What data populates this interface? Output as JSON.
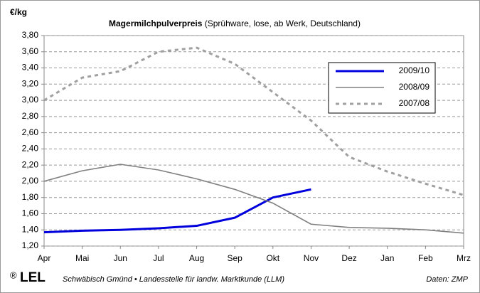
{
  "chart_data": {
    "type": "line",
    "title": "Magermilchpulverpreis",
    "subtitle": "(Sprühware, lose, ab Werk, Deutschland)",
    "y_label": "€/kg",
    "categories": [
      "Apr",
      "Mai",
      "Jun",
      "Jul",
      "Aug",
      "Sep",
      "Okt",
      "Nov",
      "Dez",
      "Jan",
      "Feb",
      "Mrz"
    ],
    "series": [
      {
        "name": "2009/10",
        "color": "#0000dd",
        "width": 3,
        "dashed": false,
        "values": [
          1.37,
          1.39,
          1.4,
          1.42,
          1.45,
          1.55,
          1.8,
          1.9,
          null,
          null,
          null,
          null
        ]
      },
      {
        "name": "2008/09",
        "color": "#808080",
        "width": 1.6,
        "dashed": false,
        "values": [
          2.0,
          2.13,
          2.21,
          2.14,
          2.03,
          1.9,
          1.73,
          1.47,
          1.43,
          1.42,
          1.4,
          1.36
        ]
      },
      {
        "name": "2007/08",
        "color": "#a0a0a0",
        "width": 3,
        "dashed": true,
        "values": [
          3.0,
          3.28,
          3.36,
          3.6,
          3.65,
          3.45,
          3.1,
          2.75,
          2.3,
          2.12,
          1.97,
          1.83
        ]
      }
    ],
    "ylim": [
      1.2,
      3.8
    ],
    "yticks": [
      {
        "value": 1.2,
        "label": "1,20"
      },
      {
        "value": 1.4,
        "label": "1,40"
      },
      {
        "value": 1.6,
        "label": "1,60"
      },
      {
        "value": 1.8,
        "label": "1,80"
      },
      {
        "value": 2.0,
        "label": "2,00"
      },
      {
        "value": 2.2,
        "label": "2,20"
      },
      {
        "value": 2.4,
        "label": "2,40"
      },
      {
        "value": 2.6,
        "label": "2,60"
      },
      {
        "value": 2.8,
        "label": "2,80"
      },
      {
        "value": 3.0,
        "label": "3,00"
      },
      {
        "value": 3.2,
        "label": "3,20"
      },
      {
        "value": 3.4,
        "label": "3,40"
      },
      {
        "value": 3.6,
        "label": "3,60"
      },
      {
        "value": 3.8,
        "label": "3,80"
      }
    ],
    "grid": true,
    "legend": "top-right",
    "logo_mark": "®",
    "logo": "LEL",
    "source": "Schwäbisch Gmünd • Landesstelle für landw. Marktkunde (LLM)",
    "credit": "Daten: ZMP"
  }
}
